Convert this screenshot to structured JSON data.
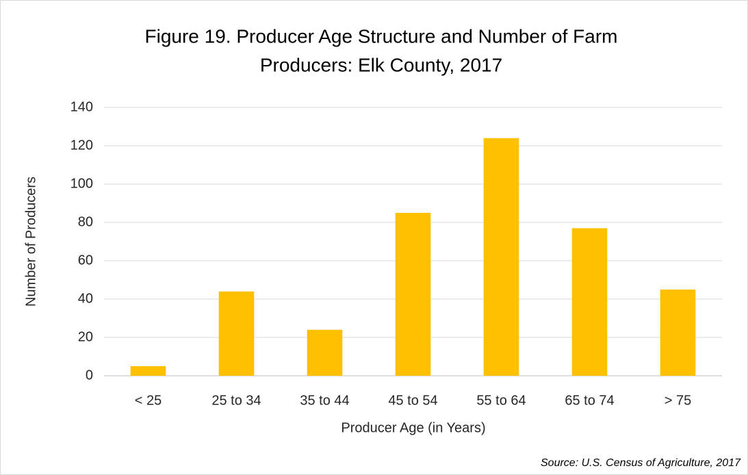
{
  "chart_data": {
    "type": "bar",
    "title": [
      "Figure 19. Producer Age Structure and Number of Farm",
      "Producers: Elk County, 2017"
    ],
    "x_label": "Producer Age (in Years)",
    "y_label": "Number of Producers",
    "source": "Source: U.S. Census of Agriculture, 2017",
    "categories": [
      "< 25",
      "25 to 34",
      "35 to 44",
      "45 to 54",
      "55 to 64",
      "65 to 74",
      "> 75"
    ],
    "values": [
      5,
      44,
      24,
      85,
      124,
      77,
      45
    ],
    "color": "#ffc000",
    "ylim": [
      0,
      140
    ],
    "yticks": [
      0,
      20,
      40,
      60,
      80,
      100,
      120,
      140
    ],
    "grid": true
  }
}
